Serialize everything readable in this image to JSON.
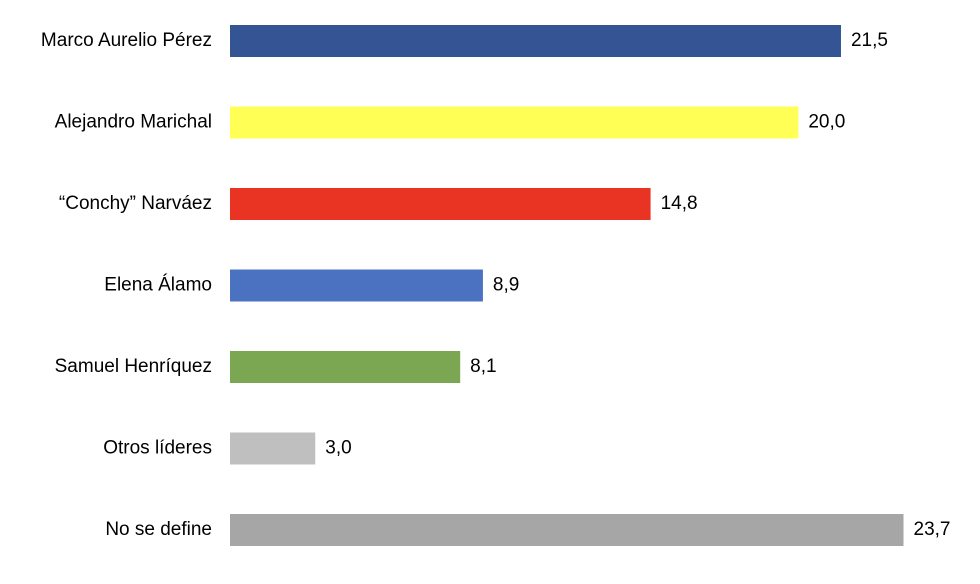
{
  "chart_data": {
    "type": "barh",
    "categories": [
      "Marco Aurelio Pérez",
      "Alejandro Marichal",
      "“Conchy” Narváez",
      "Elena Álamo",
      "Samuel Henríquez",
      "Otros líderes",
      "No se define"
    ],
    "values": [
      21.5,
      20.0,
      14.8,
      8.9,
      8.1,
      3.0,
      23.7
    ],
    "value_labels": [
      "21,5",
      "20,0",
      "14,8",
      "8,9",
      "8,1",
      "3,0",
      "23,7"
    ],
    "colors": [
      "#345494",
      "#ffff55",
      "#e93323",
      "#4a72c1",
      "#7ba753",
      "#bfbfbf",
      "#a6a6a6"
    ]
  }
}
